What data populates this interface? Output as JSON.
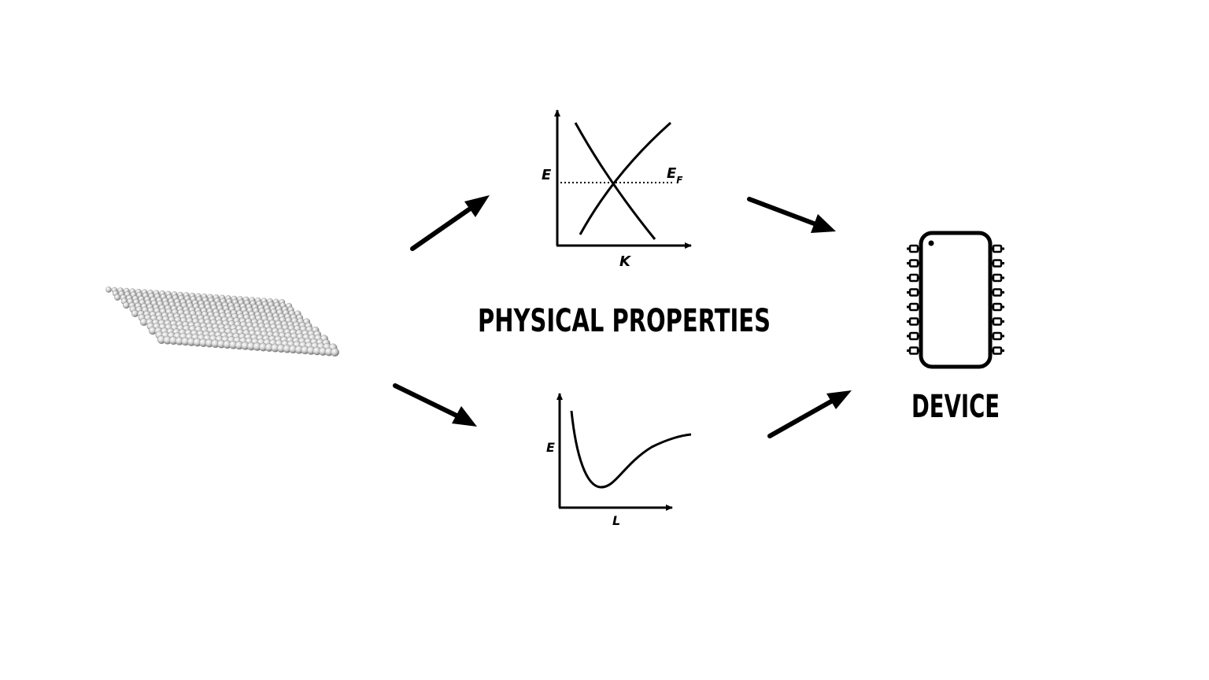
{
  "diagram": {
    "center_label": "PHYSICAL PROPERTIES",
    "device_label": "DEVICE",
    "band_plot": {
      "y_label": "E",
      "x_label": "K",
      "fermi_label_main": "E",
      "fermi_label_sub": "F"
    },
    "energy_plot": {
      "y_label": "E",
      "x_label": "L"
    },
    "lattice_icon": "atomic-sheet-icon",
    "chip_icon": "integrated-circuit-icon"
  }
}
